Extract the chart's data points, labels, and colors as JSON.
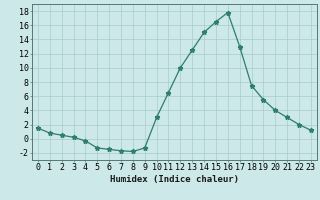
{
  "x": [
    0,
    1,
    2,
    3,
    4,
    5,
    6,
    7,
    8,
    9,
    10,
    11,
    12,
    13,
    14,
    15,
    16,
    17,
    18,
    19,
    20,
    21,
    22,
    23
  ],
  "y": [
    1.5,
    0.8,
    0.5,
    0.2,
    -0.3,
    -1.3,
    -1.5,
    -1.7,
    -1.8,
    -1.3,
    3.0,
    6.5,
    10.0,
    12.5,
    15.0,
    16.5,
    17.8,
    13.0,
    7.5,
    5.5,
    4.0,
    3.0,
    2.0,
    1.2
  ],
  "line_color": "#2e7d6e",
  "marker": "*",
  "marker_size": 3.5,
  "bg_color": "#cce8e8",
  "grid_color": "#a8cccc",
  "xlabel": "Humidex (Indice chaleur)",
  "ylim": [
    -3,
    19
  ],
  "yticks": [
    -2,
    0,
    2,
    4,
    6,
    8,
    10,
    12,
    14,
    16,
    18
  ],
  "xticks": [
    0,
    1,
    2,
    3,
    4,
    5,
    6,
    7,
    8,
    9,
    10,
    11,
    12,
    13,
    14,
    15,
    16,
    17,
    18,
    19,
    20,
    21,
    22,
    23
  ],
  "xlabel_fontsize": 6.5,
  "tick_fontsize": 6.0,
  "title_fontsize": 8
}
